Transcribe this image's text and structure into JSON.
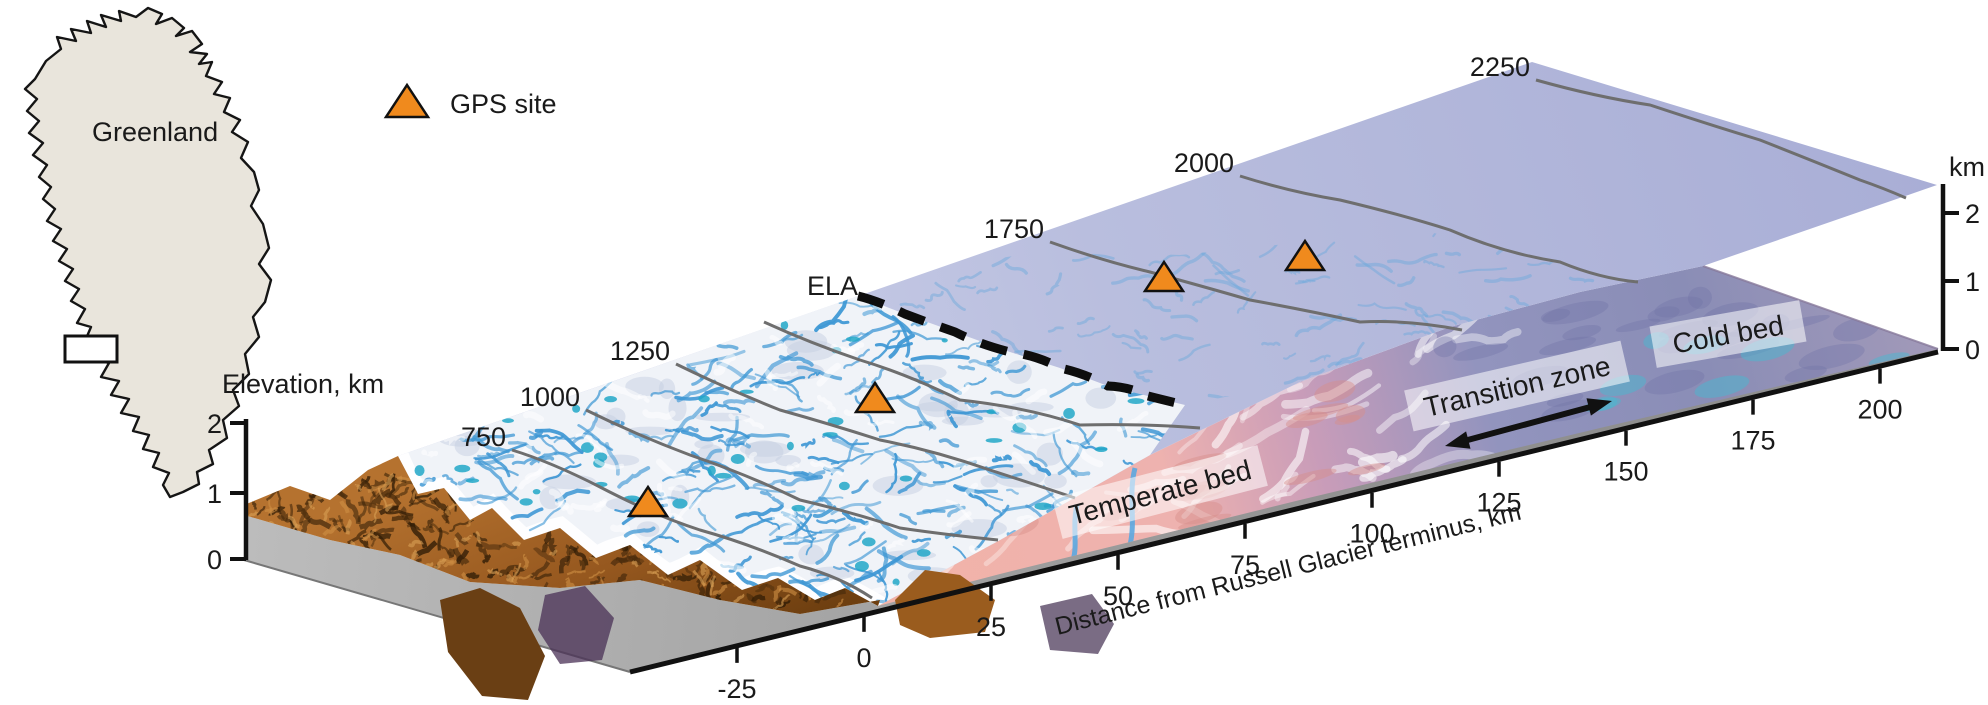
{
  "figure": {
    "map": {
      "region_label": "Greenland"
    },
    "legend": {
      "gps_label": "GPS site"
    },
    "axes": {
      "elevation": {
        "title": "Elevation, km",
        "ticks": [
          "2",
          "1",
          "0"
        ]
      },
      "right_km": {
        "title": "km",
        "ticks": [
          "2",
          "1",
          "0"
        ]
      },
      "distance": {
        "title": "Distance from Russell Glacier terminus, km",
        "ticks": [
          "-25",
          "0",
          "25",
          "50",
          "75",
          "100",
          "125",
          "150",
          "175",
          "200"
        ]
      }
    },
    "surface": {
      "contour_labels": [
        "750",
        "1000",
        "1250",
        "1750",
        "2000",
        "2250"
      ],
      "ela_label": "ELA"
    },
    "bed": {
      "labels": [
        "Temperate bed",
        "Transition zone",
        "Cold bed"
      ]
    },
    "colors": {
      "gps_orange": "#F08A1D",
      "ice_surface": "#B7BCDD",
      "meltwater_blue": "#3E97D4",
      "temperate_bed_pink": "#EDA89F",
      "cold_bed_blue": "#8A8DB4",
      "terrain_brown": "#A2611F",
      "map_fill": "#E9E5DC"
    }
  }
}
